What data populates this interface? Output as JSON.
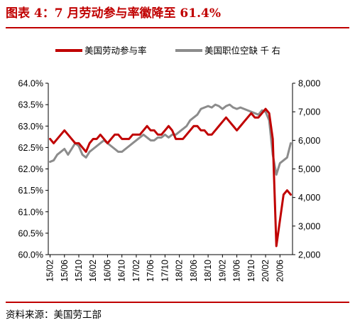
{
  "figure": {
    "title": "图表 4：7 月劳动参与率徽降至 61.4%",
    "source": "资料来源：美国劳工部"
  },
  "chart_data": {
    "type": "line",
    "title": "",
    "xlabel": "",
    "ylabel_left": "",
    "ylabel_right": "",
    "legend_position": "top",
    "grid": false,
    "x_start": "2015-02",
    "x_end": "2020-07",
    "x_tick_labels": [
      "15/02",
      "15/06",
      "15/10",
      "16/02",
      "16/06",
      "16/10",
      "17/02",
      "17/06",
      "17/10",
      "18/02",
      "18/06",
      "18/10",
      "19/02",
      "19/06",
      "19/10",
      "20/02",
      "20/06"
    ],
    "y_left": {
      "range": [
        60.0,
        64.0
      ],
      "tick_labels": [
        "60.0%",
        "60.5%",
        "61.0%",
        "61.5%",
        "62.0%",
        "62.5%",
        "63.0%",
        "63.5%",
        "64.0%"
      ]
    },
    "y_right": {
      "range": [
        2000,
        8000
      ],
      "tick_labels": [
        "2,000",
        "3,000",
        "4,000",
        "5,000",
        "6,000",
        "7,000",
        "8,000"
      ]
    },
    "series": [
      {
        "name": "美国劳动参与率",
        "axis": "left",
        "color": "#c00000",
        "values": [
          62.7,
          62.6,
          62.7,
          62.8,
          62.9,
          62.8,
          62.7,
          62.6,
          62.6,
          62.5,
          62.4,
          62.6,
          62.7,
          62.7,
          62.8,
          62.7,
          62.6,
          62.7,
          62.8,
          62.8,
          62.7,
          62.7,
          62.7,
          62.8,
          62.8,
          62.8,
          62.9,
          63.0,
          62.9,
          62.9,
          62.8,
          62.8,
          62.9,
          63.0,
          62.9,
          62.7,
          62.7,
          62.7,
          62.8,
          62.9,
          63.0,
          63.0,
          62.9,
          62.9,
          62.8,
          62.8,
          62.9,
          63.0,
          63.1,
          63.2,
          63.1,
          63.0,
          62.9,
          63.0,
          63.1,
          63.2,
          63.3,
          63.2,
          63.2,
          63.3,
          63.4,
          63.3,
          62.7,
          60.2,
          60.8,
          61.4,
          61.5,
          61.4
        ]
      },
      {
        "name": "美国职位空缺 千 右",
        "axis": "right",
        "color": "#8c8c8c",
        "values": [
          5250,
          5300,
          5500,
          5600,
          5700,
          5500,
          5700,
          5900,
          5800,
          5500,
          5400,
          5600,
          5700,
          5800,
          5900,
          6000,
          5900,
          5800,
          5700,
          5600,
          5600,
          5700,
          5800,
          5900,
          6000,
          6100,
          6200,
          6100,
          6000,
          6000,
          6100,
          6100,
          6200,
          6100,
          6200,
          6200,
          6300,
          6400,
          6500,
          6700,
          6800,
          6900,
          7100,
          7150,
          7200,
          7150,
          7250,
          7200,
          7100,
          7200,
          7250,
          7150,
          7100,
          7150,
          7100,
          7050,
          7000,
          6950,
          6900,
          7050,
          7000,
          6700,
          5500,
          4800,
          5200,
          5300,
          5400,
          5900
        ]
      }
    ]
  }
}
